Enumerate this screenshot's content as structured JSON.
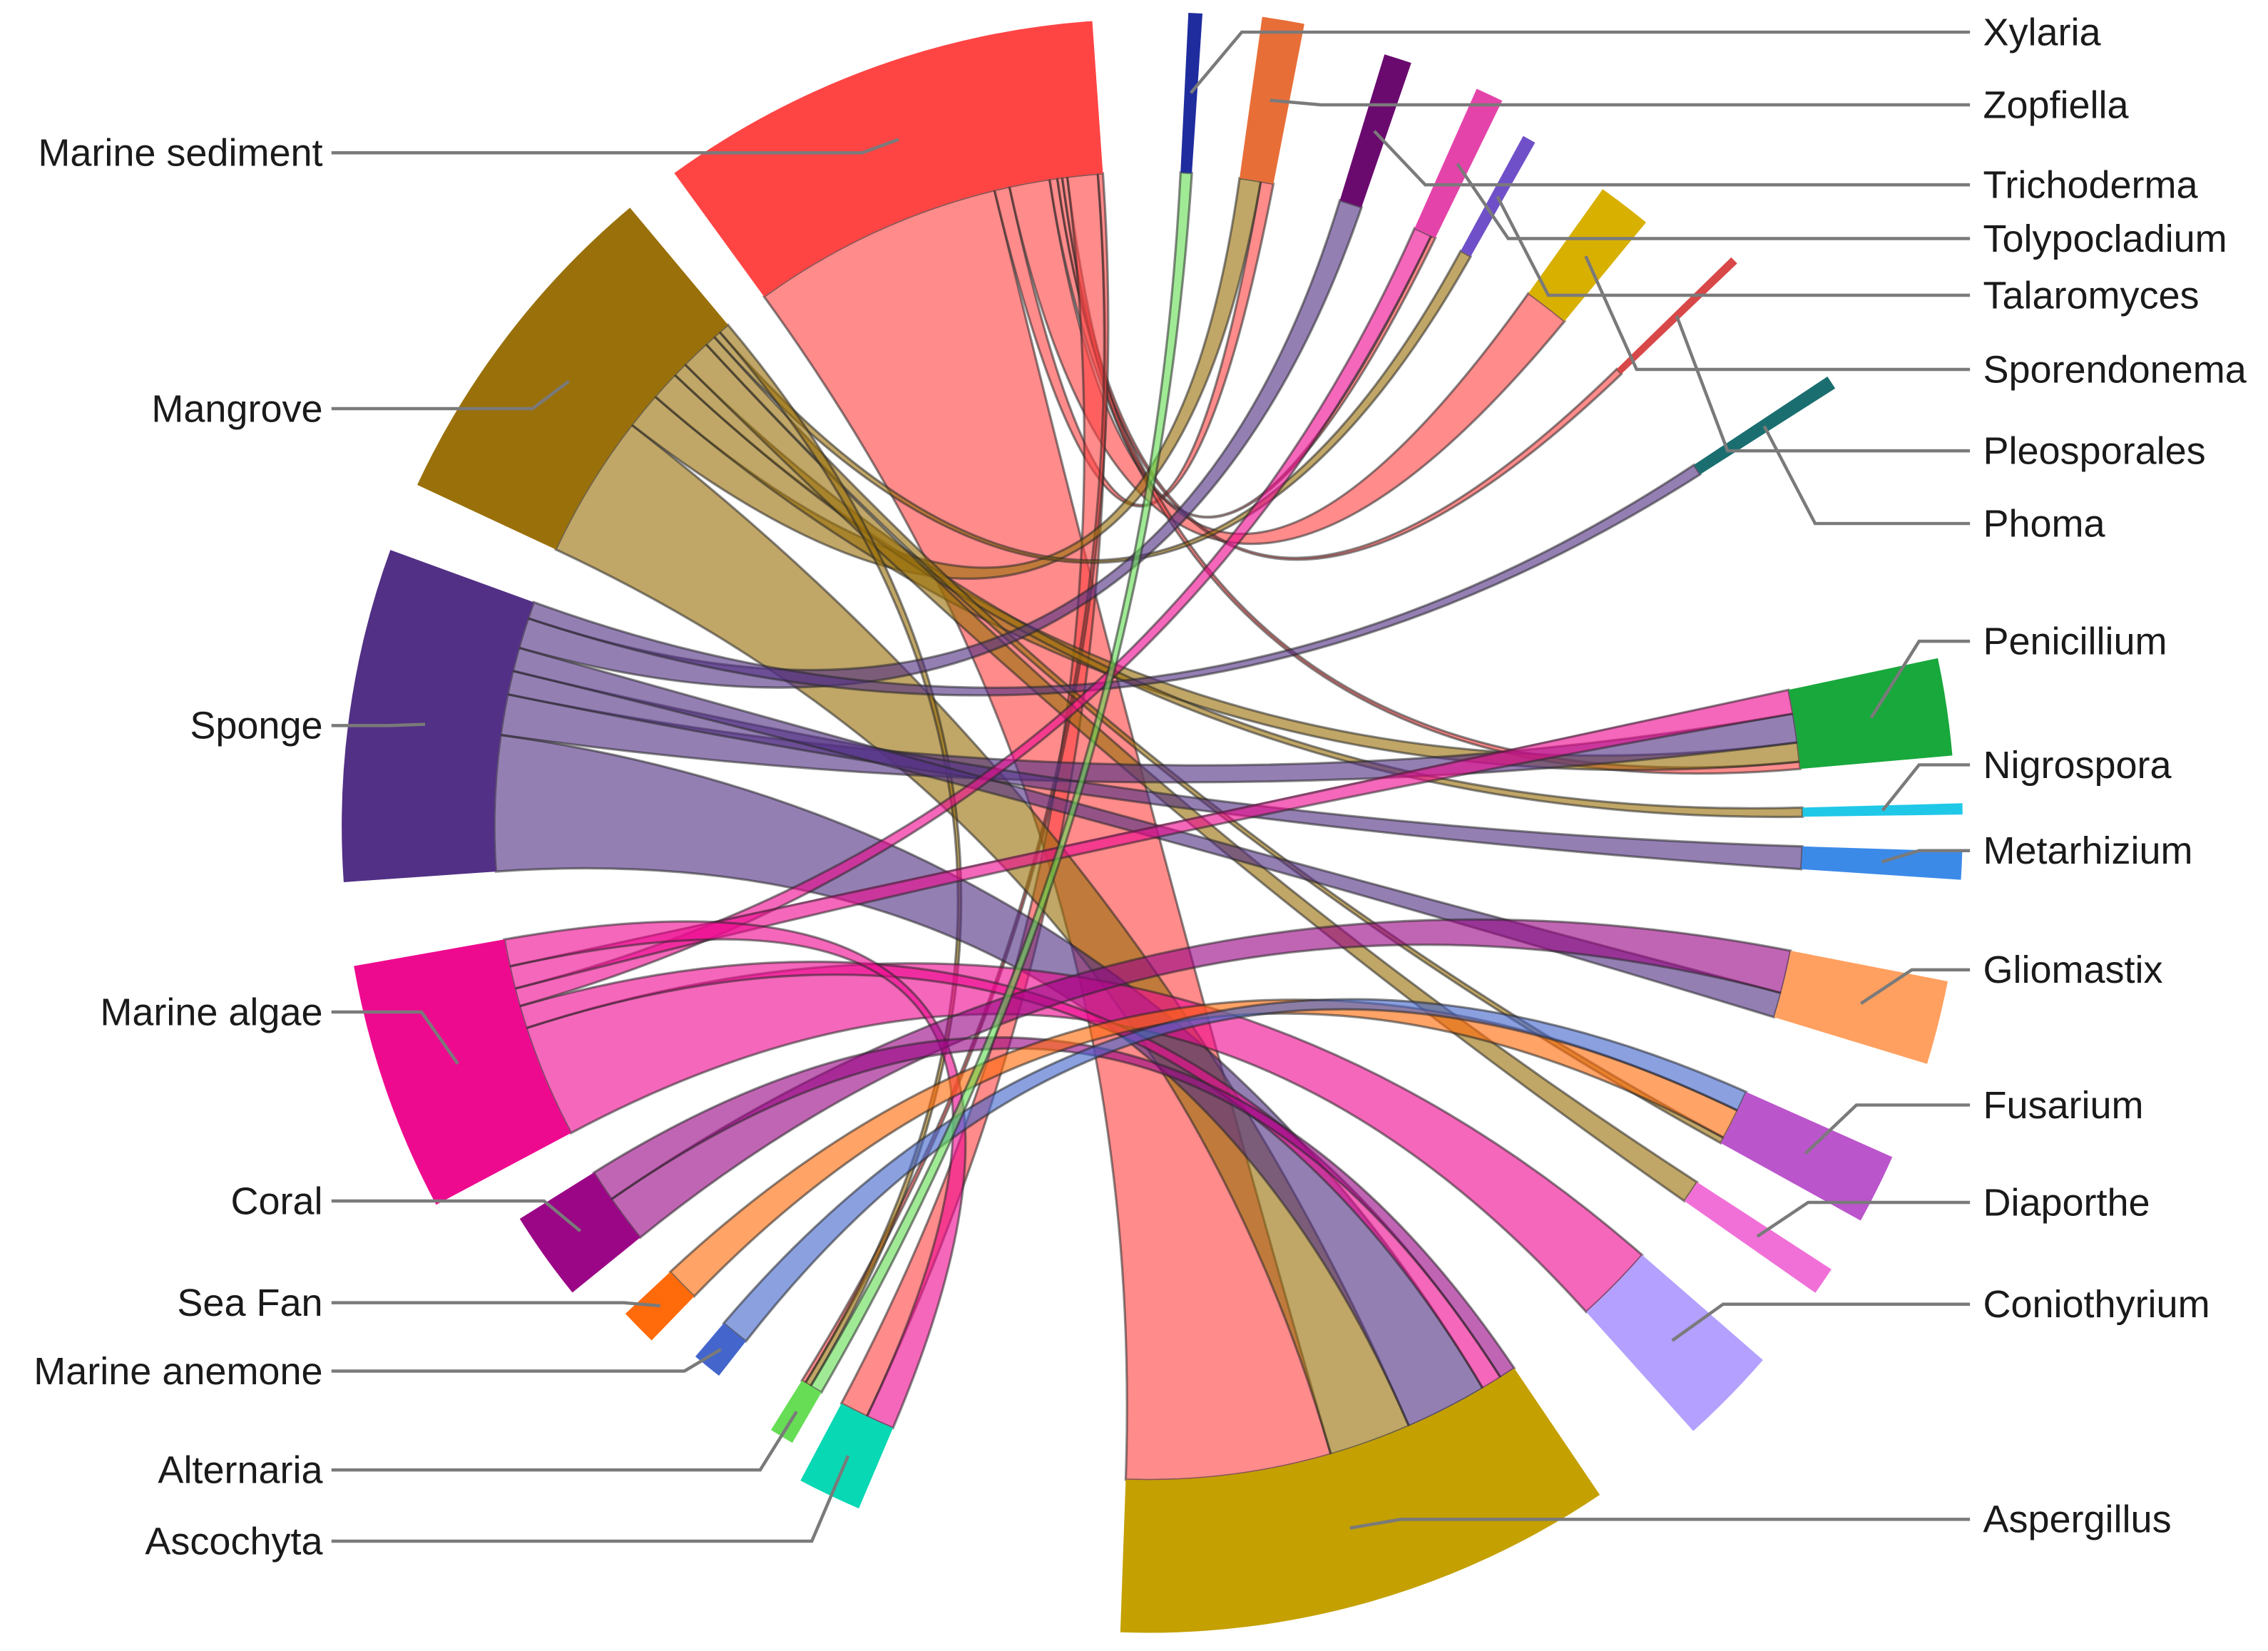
{
  "chart_data": {
    "type": "chord",
    "title": "",
    "sources": [
      {
        "name": "Marine sediment",
        "color": "#FF4444"
      },
      {
        "name": "Mangrove",
        "color": "#99700A"
      },
      {
        "name": "Sponge",
        "color": "#523085"
      },
      {
        "name": "Marine algae",
        "color": "#EE0A8F"
      },
      {
        "name": "Coral",
        "color": "#9A0685"
      },
      {
        "name": "Sea Fan",
        "color": "#FF6A0A"
      },
      {
        "name": "Marine anemone",
        "color": "#4466CC"
      },
      {
        "name": "Alternaria",
        "color": "#66DD55"
      },
      {
        "name": "Ascochyta",
        "color": "#08D8B4"
      }
    ],
    "targets": [
      {
        "name": "Xylaria",
        "color": "#1E2C9E"
      },
      {
        "name": "Zopfiella",
        "color": "#E86E38"
      },
      {
        "name": "Trichoderma",
        "color": "#6A0A6E"
      },
      {
        "name": "Tolypocladium",
        "color": "#E444AA"
      },
      {
        "name": "Talaromyces",
        "color": "#7050C8"
      },
      {
        "name": "Sporendonema",
        "color": "#D8B000"
      },
      {
        "name": "Pleosporales",
        "color": "#D84848"
      },
      {
        "name": "Phoma",
        "color": "#1A6E70"
      },
      {
        "name": "Penicillium",
        "color": "#18A83C"
      },
      {
        "name": "Nigrospora",
        "color": "#20C8E8"
      },
      {
        "name": "Metarhizium",
        "color": "#3C8AE8"
      },
      {
        "name": "Gliomastix",
        "color": "#FFA060"
      },
      {
        "name": "Fusarium",
        "color": "#BB55CC"
      },
      {
        "name": "Diaporthe",
        "color": "#F070D8"
      },
      {
        "name": "Coniothyrium",
        "color": "#B3A0FF"
      },
      {
        "name": "Aspergillus",
        "color": "#C4A000"
      }
    ]
  }
}
